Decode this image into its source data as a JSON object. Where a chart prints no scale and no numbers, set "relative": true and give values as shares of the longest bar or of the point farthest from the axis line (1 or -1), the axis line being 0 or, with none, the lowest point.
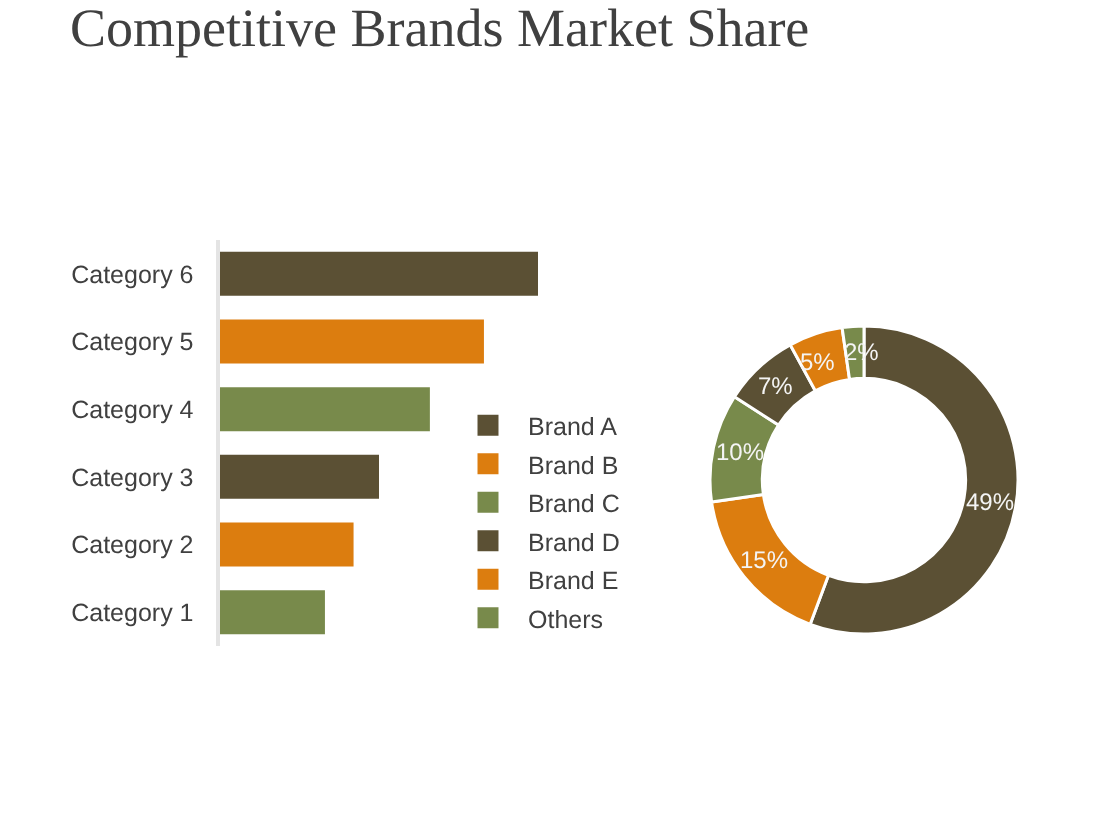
{
  "chart_data": [
    {
      "type": "bar",
      "title": "Competitive Brands Market Share",
      "orientation": "horizontal",
      "relative": true,
      "categories": [
        "Category 6",
        "Category 5",
        "Category 4",
        "Category 3",
        "Category 2",
        "Category 1"
      ],
      "values": [
        1,
        0.83,
        0.66,
        0.5,
        0.42,
        0.33
      ],
      "colors": [
        "#5b5034",
        "#dc7d0f",
        "#788a4b",
        "#5b5034",
        "#dc7d0f",
        "#788a4b"
      ]
    },
    {
      "type": "donut",
      "categories": [
        "Brand A",
        "Brand B",
        "Brand C",
        "Brand D",
        "Brand E",
        "Others"
      ],
      "values": [
        49,
        15,
        10,
        7,
        5,
        2
      ],
      "value_labels": [
        "49%",
        "15%",
        "10%",
        "7%",
        "5%",
        "2%"
      ],
      "colors": [
        "#5b5034",
        "#dc7d0f",
        "#788a4b",
        "#5b5034",
        "#dc7d0f",
        "#788a4b"
      ],
      "legend": "left"
    }
  ]
}
